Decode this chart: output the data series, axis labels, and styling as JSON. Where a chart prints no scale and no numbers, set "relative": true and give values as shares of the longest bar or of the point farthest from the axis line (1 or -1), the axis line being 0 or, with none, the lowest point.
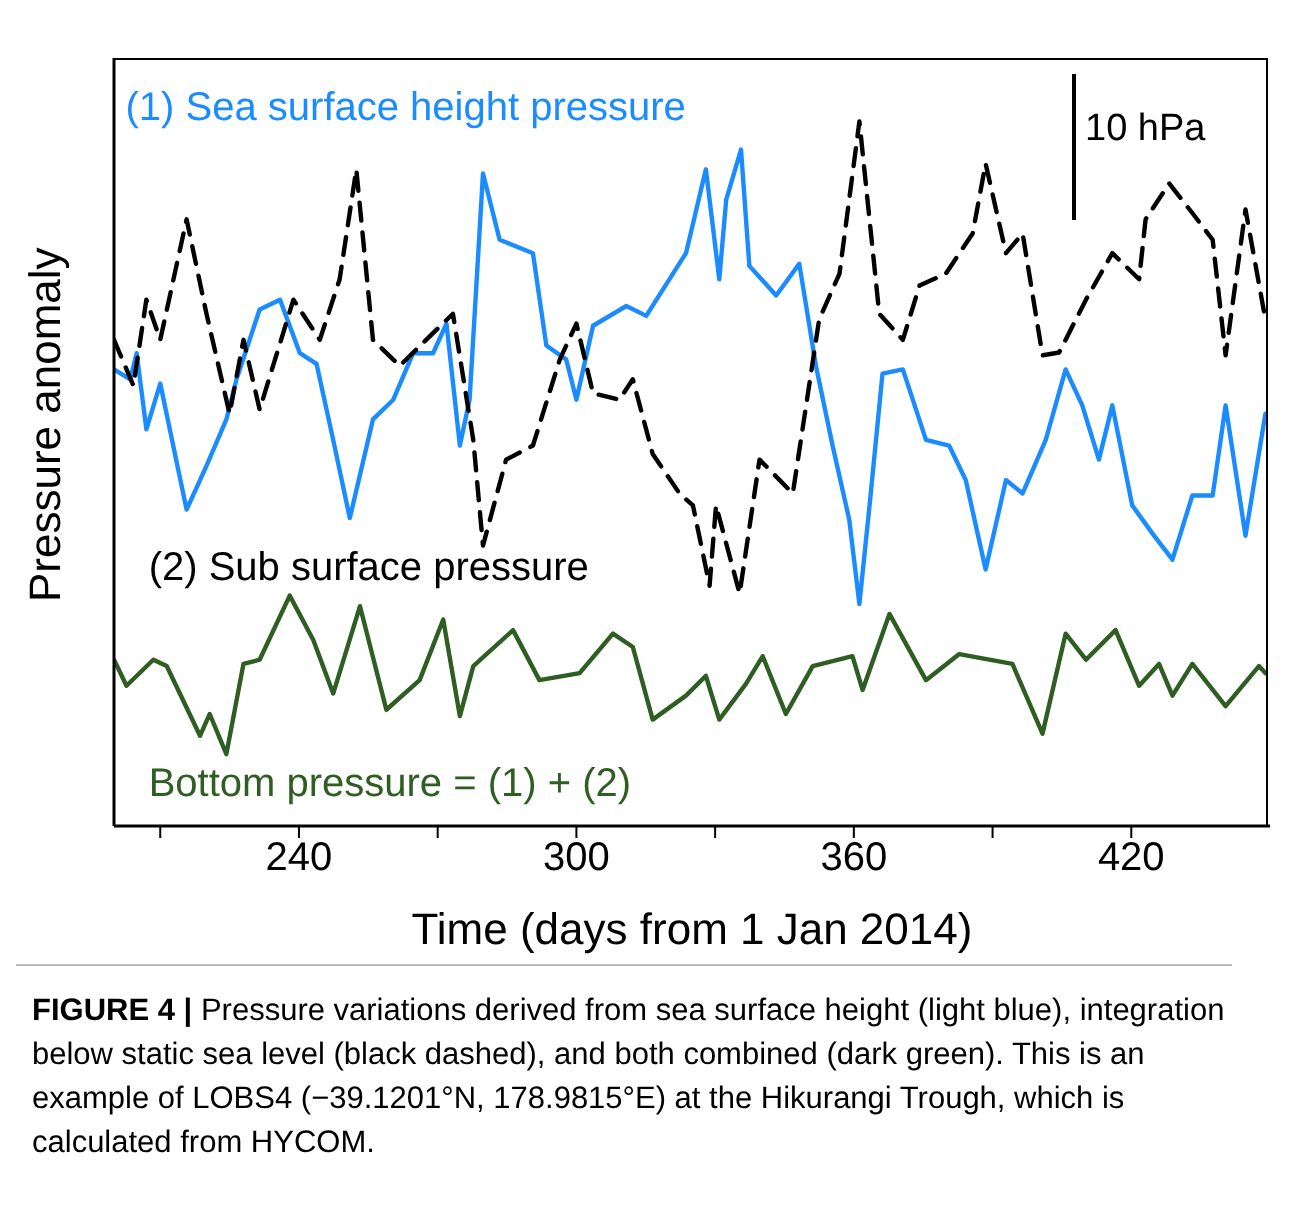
{
  "chart_data": {
    "type": "line",
    "relative": true,
    "xlabel": "Time (days from 1 Jan 2014)",
    "ylabel": "Pressure anomaly",
    "xlim": [
      200,
      450
    ],
    "xticks": [
      {
        "value": 210,
        "label": null
      },
      240,
      {
        "value": 270,
        "label": null
      },
      300,
      {
        "value": 330,
        "label": null
      },
      360,
      {
        "value": 390,
        "label": null
      },
      420
    ],
    "tick_labels": "x",
    "marker": "none",
    "annotations": [
      "10 hPa",
      "FIGURE 4 | Pressure variations derived from sea surface height (light blue), integration below static sea level (black dashed), and both combined (dark green). This is an example of LOBS4 (−39.1201°N, 178.9815°E) at the Hikurangi Trough, which is calculated from HYCOM."
    ],
    "series": [
      {
        "name": "(1) Sea surface height pressure",
        "color": "#1a8cff",
        "line_style": "solid",
        "x": [
          200,
          203.5,
          204.9,
          207,
          210,
          215.7,
          220,
          224.3,
          226.5,
          231.5,
          235.9,
          240.2,
          243.8,
          247.4,
          251,
          256,
          260.4,
          264.7,
          269,
          271.9,
          274.8,
          276.9,
          279.8,
          283.4,
          290.6,
          293.5,
          297.8,
          300,
          303.6,
          310.8,
          315.1,
          323.7,
          328,
          330.9,
          332.4,
          335.6,
          337.4,
          343.2,
          348.2,
          351.8,
          355.4,
          359,
          361.2,
          363.4,
          366.2,
          370.6,
          375.6,
          380.6,
          384.2,
          388.5,
          392.9,
          396.5,
          401.5,
          405.8,
          409.4,
          413,
          415.9,
          420.2,
          424.6,
          428.9,
          433.2,
          437.6,
          440.4,
          444.7,
          449
        ],
        "values": [
          0.648,
          0.634,
          0.671,
          0.563,
          0.628,
          0.449,
          0.511,
          0.577,
          0.634,
          0.733,
          0.747,
          0.671,
          0.656,
          0.548,
          0.437,
          0.577,
          0.605,
          0.671,
          0.671,
          0.713,
          0.54,
          0.605,
          0.926,
          0.832,
          0.813,
          0.682,
          0.662,
          0.605,
          0.71,
          0.738,
          0.724,
          0.813,
          0.932,
          0.776,
          0.889,
          0.96,
          0.795,
          0.753,
          0.798,
          0.653,
          0.54,
          0.435,
          0.315,
          0.455,
          0.642,
          0.648,
          0.548,
          0.54,
          0.491,
          0.364,
          0.491,
          0.472,
          0.548,
          0.648,
          0.597,
          0.52,
          0.597,
          0.455,
          0.415,
          0.378,
          0.469,
          0.469,
          0.597,
          0.412,
          0.585
        ]
      },
      {
        "name": "(2) Sub surface pressure",
        "color": "#000000",
        "line_style": "dashed",
        "x": [
          200,
          204.2,
          207,
          210,
          215.7,
          220,
          225,
          228,
          231.5,
          238.8,
          244.5,
          248.8,
          252.4,
          256,
          261.8,
          267.5,
          273.3,
          277.7,
          279.8,
          284.8,
          290.6,
          296.4,
          300,
          303.6,
          309.3,
          312.2,
          316.5,
          322.3,
          325.2,
          328.8,
          330.2,
          335.3,
          339.6,
          346.8,
          352.5,
          356.9,
          361.2,
          365.5,
          370.6,
          374.2,
          379.9,
          385.7,
          388.5,
          392.9,
          396.5,
          400.8,
          404.4,
          410.2,
          415.9,
          421.7,
          423.1,
          428.2,
          433.2,
          437.6,
          440.4,
          444.7,
          449
        ],
        "values": [
          0.69,
          0.625,
          0.747,
          0.69,
          0.861,
          0.727,
          0.585,
          0.69,
          0.591,
          0.747,
          0.69,
          0.776,
          0.932,
          0.69,
          0.653,
          0.69,
          0.727,
          0.548,
          0.398,
          0.52,
          0.54,
          0.662,
          0.713,
          0.614,
          0.605,
          0.634,
          0.528,
          0.472,
          0.455,
          0.341,
          0.455,
          0.33,
          0.52,
          0.472,
          0.719,
          0.784,
          1,
          0.727,
          0.69,
          0.767,
          0.784,
          0.841,
          0.94,
          0.813,
          0.841,
          0.668,
          0.672,
          0.747,
          0.813,
          0.776,
          0.861,
          0.912,
          0.87,
          0.832,
          0.668,
          0.875,
          0.719
        ]
      },
      {
        "name": "Bottom pressure = (1) + (2)",
        "color": "#2e5e22",
        "line_style": "solid",
        "x": [
          200,
          202.7,
          208.5,
          211.4,
          218.6,
          220.7,
          224.3,
          228,
          231.5,
          238,
          243.1,
          247.4,
          253.2,
          258.9,
          266.1,
          271.2,
          274.8,
          277.7,
          286.3,
          292,
          300.7,
          307.9,
          312.2,
          316.5,
          323.7,
          328,
          330.9,
          336.7,
          340.3,
          345.3,
          351.1,
          359.7,
          361.9,
          367.7,
          375.6,
          382.8,
          394.3,
          400.8,
          405.8,
          410.2,
          416.6,
          421.7,
          426,
          428.9,
          433.2,
          440.4,
          447.6,
          449
        ],
        "values": [
          0.236,
          0.199,
          0.236,
          0.227,
          0.128,
          0.159,
          0.102,
          0.23,
          0.236,
          0.327,
          0.264,
          0.188,
          0.312,
          0.165,
          0.207,
          0.293,
          0.156,
          0.227,
          0.278,
          0.207,
          0.217,
          0.273,
          0.254,
          0.151,
          0.185,
          0.213,
          0.151,
          0.202,
          0.241,
          0.159,
          0.227,
          0.241,
          0.193,
          0.301,
          0.207,
          0.244,
          0.23,
          0.131,
          0.273,
          0.236,
          0.278,
          0.199,
          0.23,
          0.185,
          0.23,
          0.17,
          0.227,
          0.217
        ]
      }
    ]
  }
}
